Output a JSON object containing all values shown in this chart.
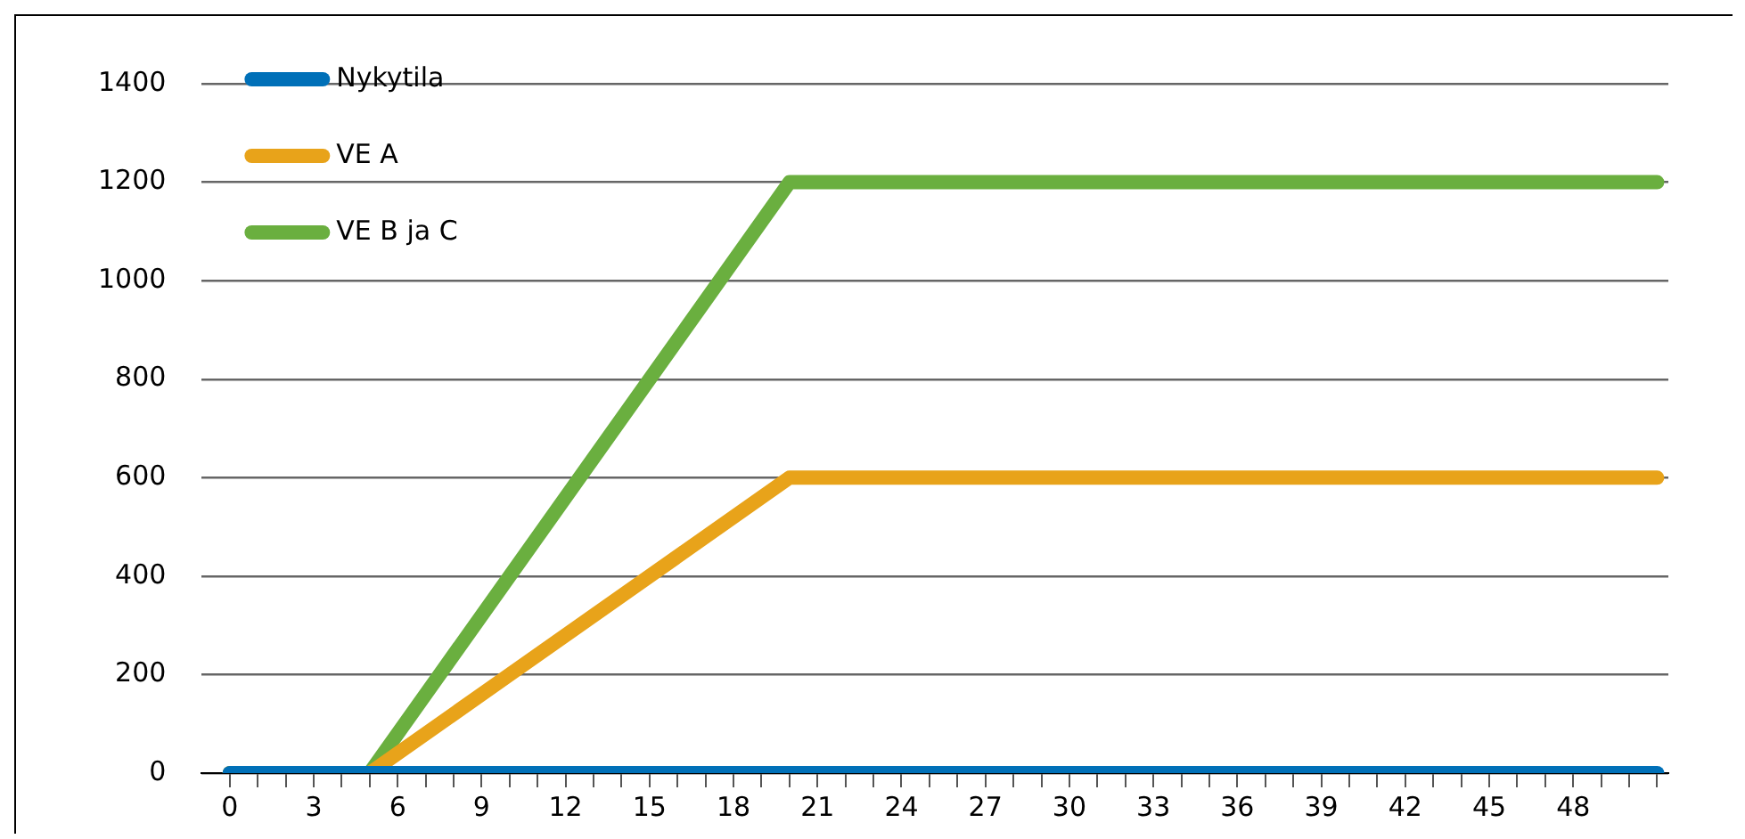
{
  "chart_data": {
    "type": "line",
    "series": [
      {
        "name": "Nykytila",
        "color": "#0070b8",
        "x": [
          0,
          5,
          20,
          51
        ],
        "values": [
          0,
          0,
          0,
          0
        ]
      },
      {
        "name": "VE A",
        "color": "#e8a31a",
        "x": [
          0,
          5,
          20,
          51
        ],
        "values": [
          0,
          0,
          600,
          600
        ]
      },
      {
        "name": "VE B ja C",
        "color": "#6aaf3f",
        "x": [
          0,
          5,
          20,
          51
        ],
        "values": [
          0,
          0,
          1200,
          1200
        ]
      }
    ],
    "xlim": [
      -1,
      51.4
    ],
    "xticks": [
      0,
      {
        "value": 1,
        "label": null
      },
      {
        "value": 2,
        "label": null
      },
      3,
      {
        "value": 4,
        "label": null
      },
      {
        "value": 5,
        "label": null
      },
      6,
      {
        "value": 7,
        "label": null
      },
      {
        "value": 8,
        "label": null
      },
      9,
      {
        "value": 10,
        "label": null
      },
      {
        "value": 11,
        "label": null
      },
      12,
      {
        "value": 13,
        "label": null
      },
      {
        "value": 14,
        "label": null
      },
      15,
      {
        "value": 16,
        "label": null
      },
      {
        "value": 17,
        "label": null
      },
      18,
      {
        "value": 19,
        "label": null
      },
      {
        "value": 20,
        "label": null
      },
      21,
      {
        "value": 22,
        "label": null
      },
      {
        "value": 23,
        "label": null
      },
      24,
      {
        "value": 25,
        "label": null
      },
      {
        "value": 26,
        "label": null
      },
      27,
      {
        "value": 28,
        "label": null
      },
      {
        "value": 29,
        "label": null
      },
      30,
      {
        "value": 31,
        "label": null
      },
      {
        "value": 32,
        "label": null
      },
      33,
      {
        "value": 34,
        "label": null
      },
      {
        "value": 35,
        "label": null
      },
      36,
      {
        "value": 37,
        "label": null
      },
      {
        "value": 38,
        "label": null
      },
      39,
      {
        "value": 40,
        "label": null
      },
      {
        "value": 41,
        "label": null
      },
      42,
      {
        "value": 43,
        "label": null
      },
      {
        "value": 44,
        "label": null
      },
      45,
      {
        "value": 46,
        "label": null
      },
      {
        "value": 47,
        "label": null
      },
      48,
      {
        "value": 49,
        "label": null
      },
      {
        "value": 50,
        "label": null
      },
      {
        "value": 51,
        "label": null
      }
    ],
    "ylim": [
      0,
      1400
    ],
    "yticks": [
      0,
      200,
      400,
      600,
      800,
      1000,
      1200,
      1400
    ],
    "grid": "y",
    "legend": "top left",
    "marker": "none",
    "line_style": "solid"
  }
}
